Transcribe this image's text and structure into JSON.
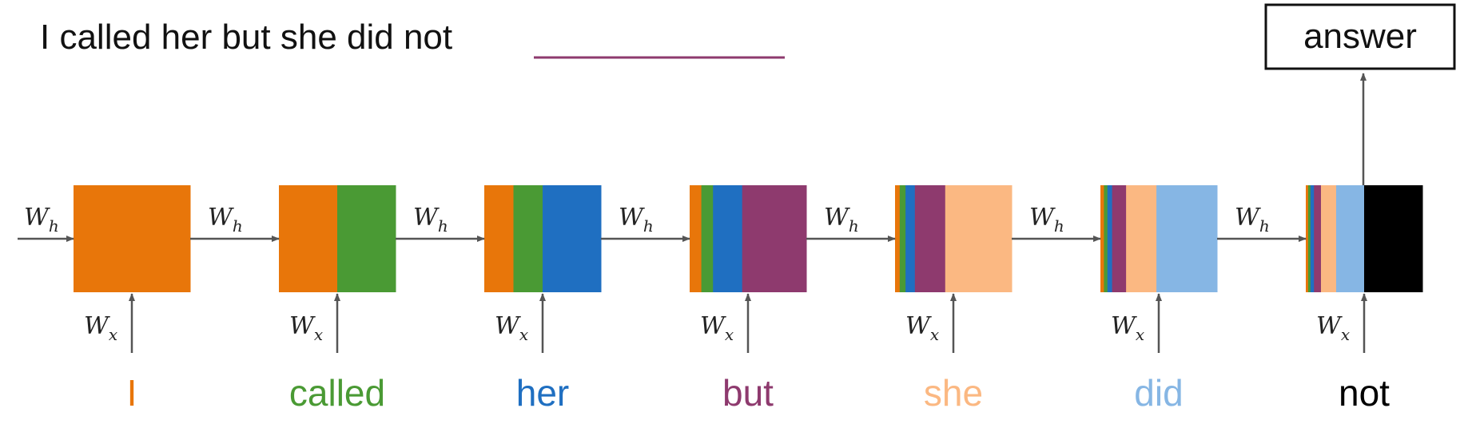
{
  "sentence": {
    "text": "I called her but she did not",
    "blank_color": "#8e3a6e"
  },
  "answer_label": "answer",
  "weights": {
    "hidden": {
      "base": "W",
      "sub": "h"
    },
    "input": {
      "base": "W",
      "sub": "x"
    }
  },
  "words": [
    {
      "text": "I",
      "color": "#e8760a"
    },
    {
      "text": "called",
      "color": "#4a9a34"
    },
    {
      "text": "her",
      "color": "#1f6fc1"
    },
    {
      "text": "but",
      "color": "#8e3a6e"
    },
    {
      "text": "she",
      "color": "#fbb882"
    },
    {
      "text": "did",
      "color": "#86b6e4"
    },
    {
      "text": "not",
      "color": "#000000"
    }
  ],
  "cell_mixes": [
    [
      [
        "#e8760a",
        1.0
      ]
    ],
    [
      [
        "#e8760a",
        0.5
      ],
      [
        "#4a9a34",
        0.5
      ]
    ],
    [
      [
        "#e8760a",
        0.25
      ],
      [
        "#4a9a34",
        0.25
      ],
      [
        "#1f6fc1",
        0.5
      ]
    ],
    [
      [
        "#e8760a",
        0.1
      ],
      [
        "#4a9a34",
        0.1
      ],
      [
        "#1f6fc1",
        0.25
      ],
      [
        "#8e3a6e",
        0.55
      ]
    ],
    [
      [
        "#e8760a",
        0.04
      ],
      [
        "#4a9a34",
        0.05
      ],
      [
        "#1f6fc1",
        0.08
      ],
      [
        "#8e3a6e",
        0.26
      ],
      [
        "#fbb882",
        0.57
      ]
    ],
    [
      [
        "#e8760a",
        0.03
      ],
      [
        "#4a9a34",
        0.03
      ],
      [
        "#1f6fc1",
        0.04
      ],
      [
        "#8e3a6e",
        0.12
      ],
      [
        "#fbb882",
        0.26
      ],
      [
        "#86b6e4",
        0.52
      ]
    ],
    [
      [
        "#e8760a",
        0.02
      ],
      [
        "#4a9a34",
        0.02
      ],
      [
        "#1f6fc1",
        0.03
      ],
      [
        "#8e3a6e",
        0.06
      ],
      [
        "#fbb882",
        0.13
      ],
      [
        "#86b6e4",
        0.24
      ],
      [
        "#000000",
        0.5
      ]
    ]
  ]
}
